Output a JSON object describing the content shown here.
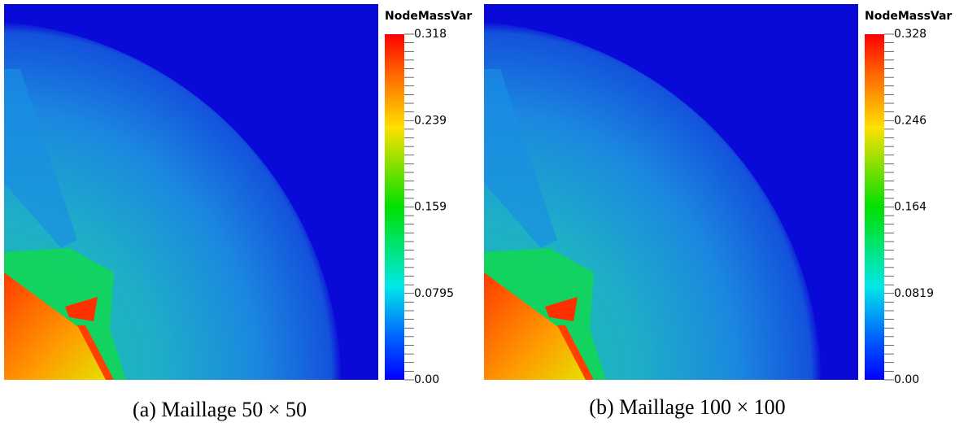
{
  "panels": [
    {
      "colorbar_title": "NodeMassVar",
      "colorbar_ticks": [
        "0.318",
        "0.239",
        "0.159",
        "0.0795",
        "0.00"
      ],
      "caption": "(a) Maillage 50 × 50"
    },
    {
      "colorbar_title": "NodeMassVar",
      "colorbar_ticks": [
        "0.328",
        "0.246",
        "0.164",
        "0.0819",
        "0.00"
      ],
      "caption": "(b) Maillage 100 × 100"
    }
  ]
}
